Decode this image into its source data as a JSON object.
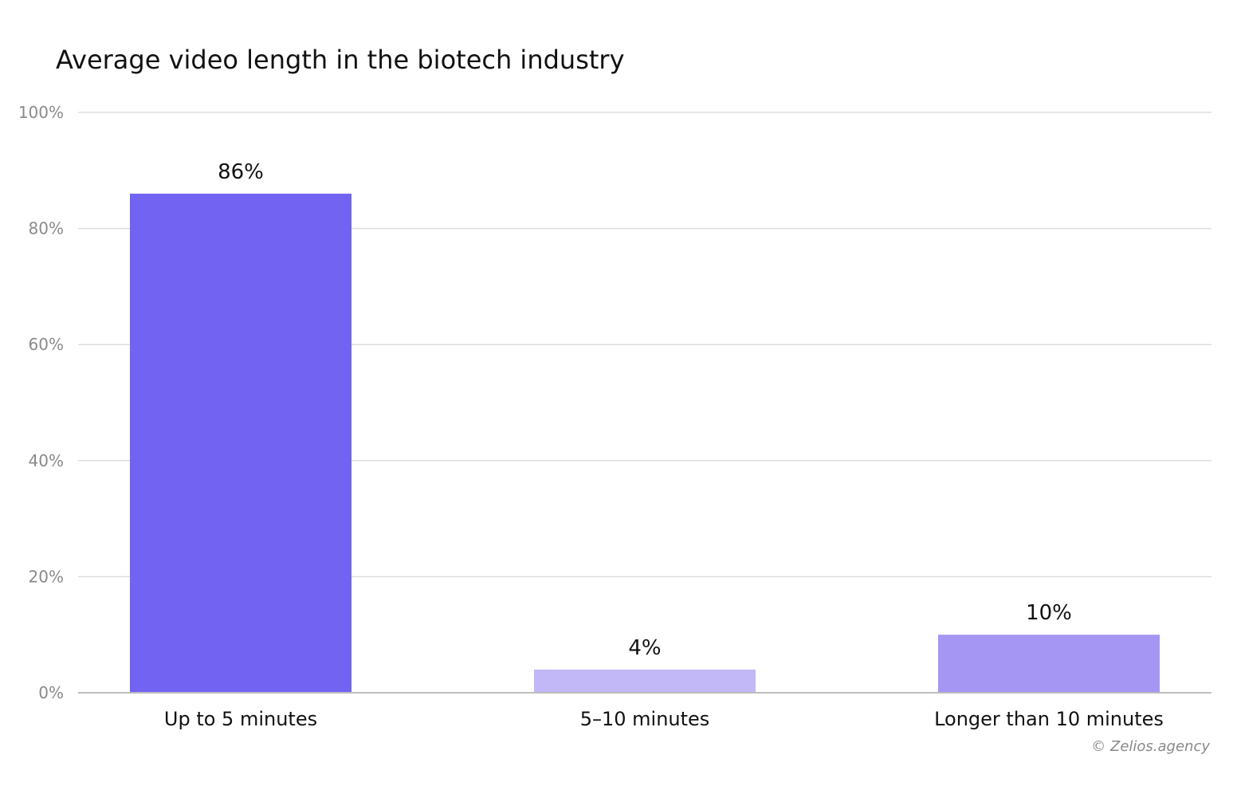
{
  "chart_data": {
    "type": "bar",
    "title": "Average video length in the biotech industry",
    "categories": [
      "Up to 5 minutes",
      "5–10 minutes",
      "Longer than 10 minutes"
    ],
    "values": [
      86,
      4,
      10
    ],
    "data_labels": [
      "86%",
      "4%",
      "10%"
    ],
    "bar_colors": [
      "#7363f3",
      "#c2b8f8",
      "#a596f4"
    ],
    "xlabel": "",
    "ylabel": "",
    "ylim": [
      0,
      100
    ],
    "y_ticks": [
      0,
      20,
      40,
      60,
      80,
      100
    ],
    "y_tick_labels": [
      "0%",
      "20%",
      "40%",
      "60%",
      "80%",
      "100%"
    ],
    "grid": true,
    "legend": "none"
  },
  "credit": "© Zelios.agency"
}
